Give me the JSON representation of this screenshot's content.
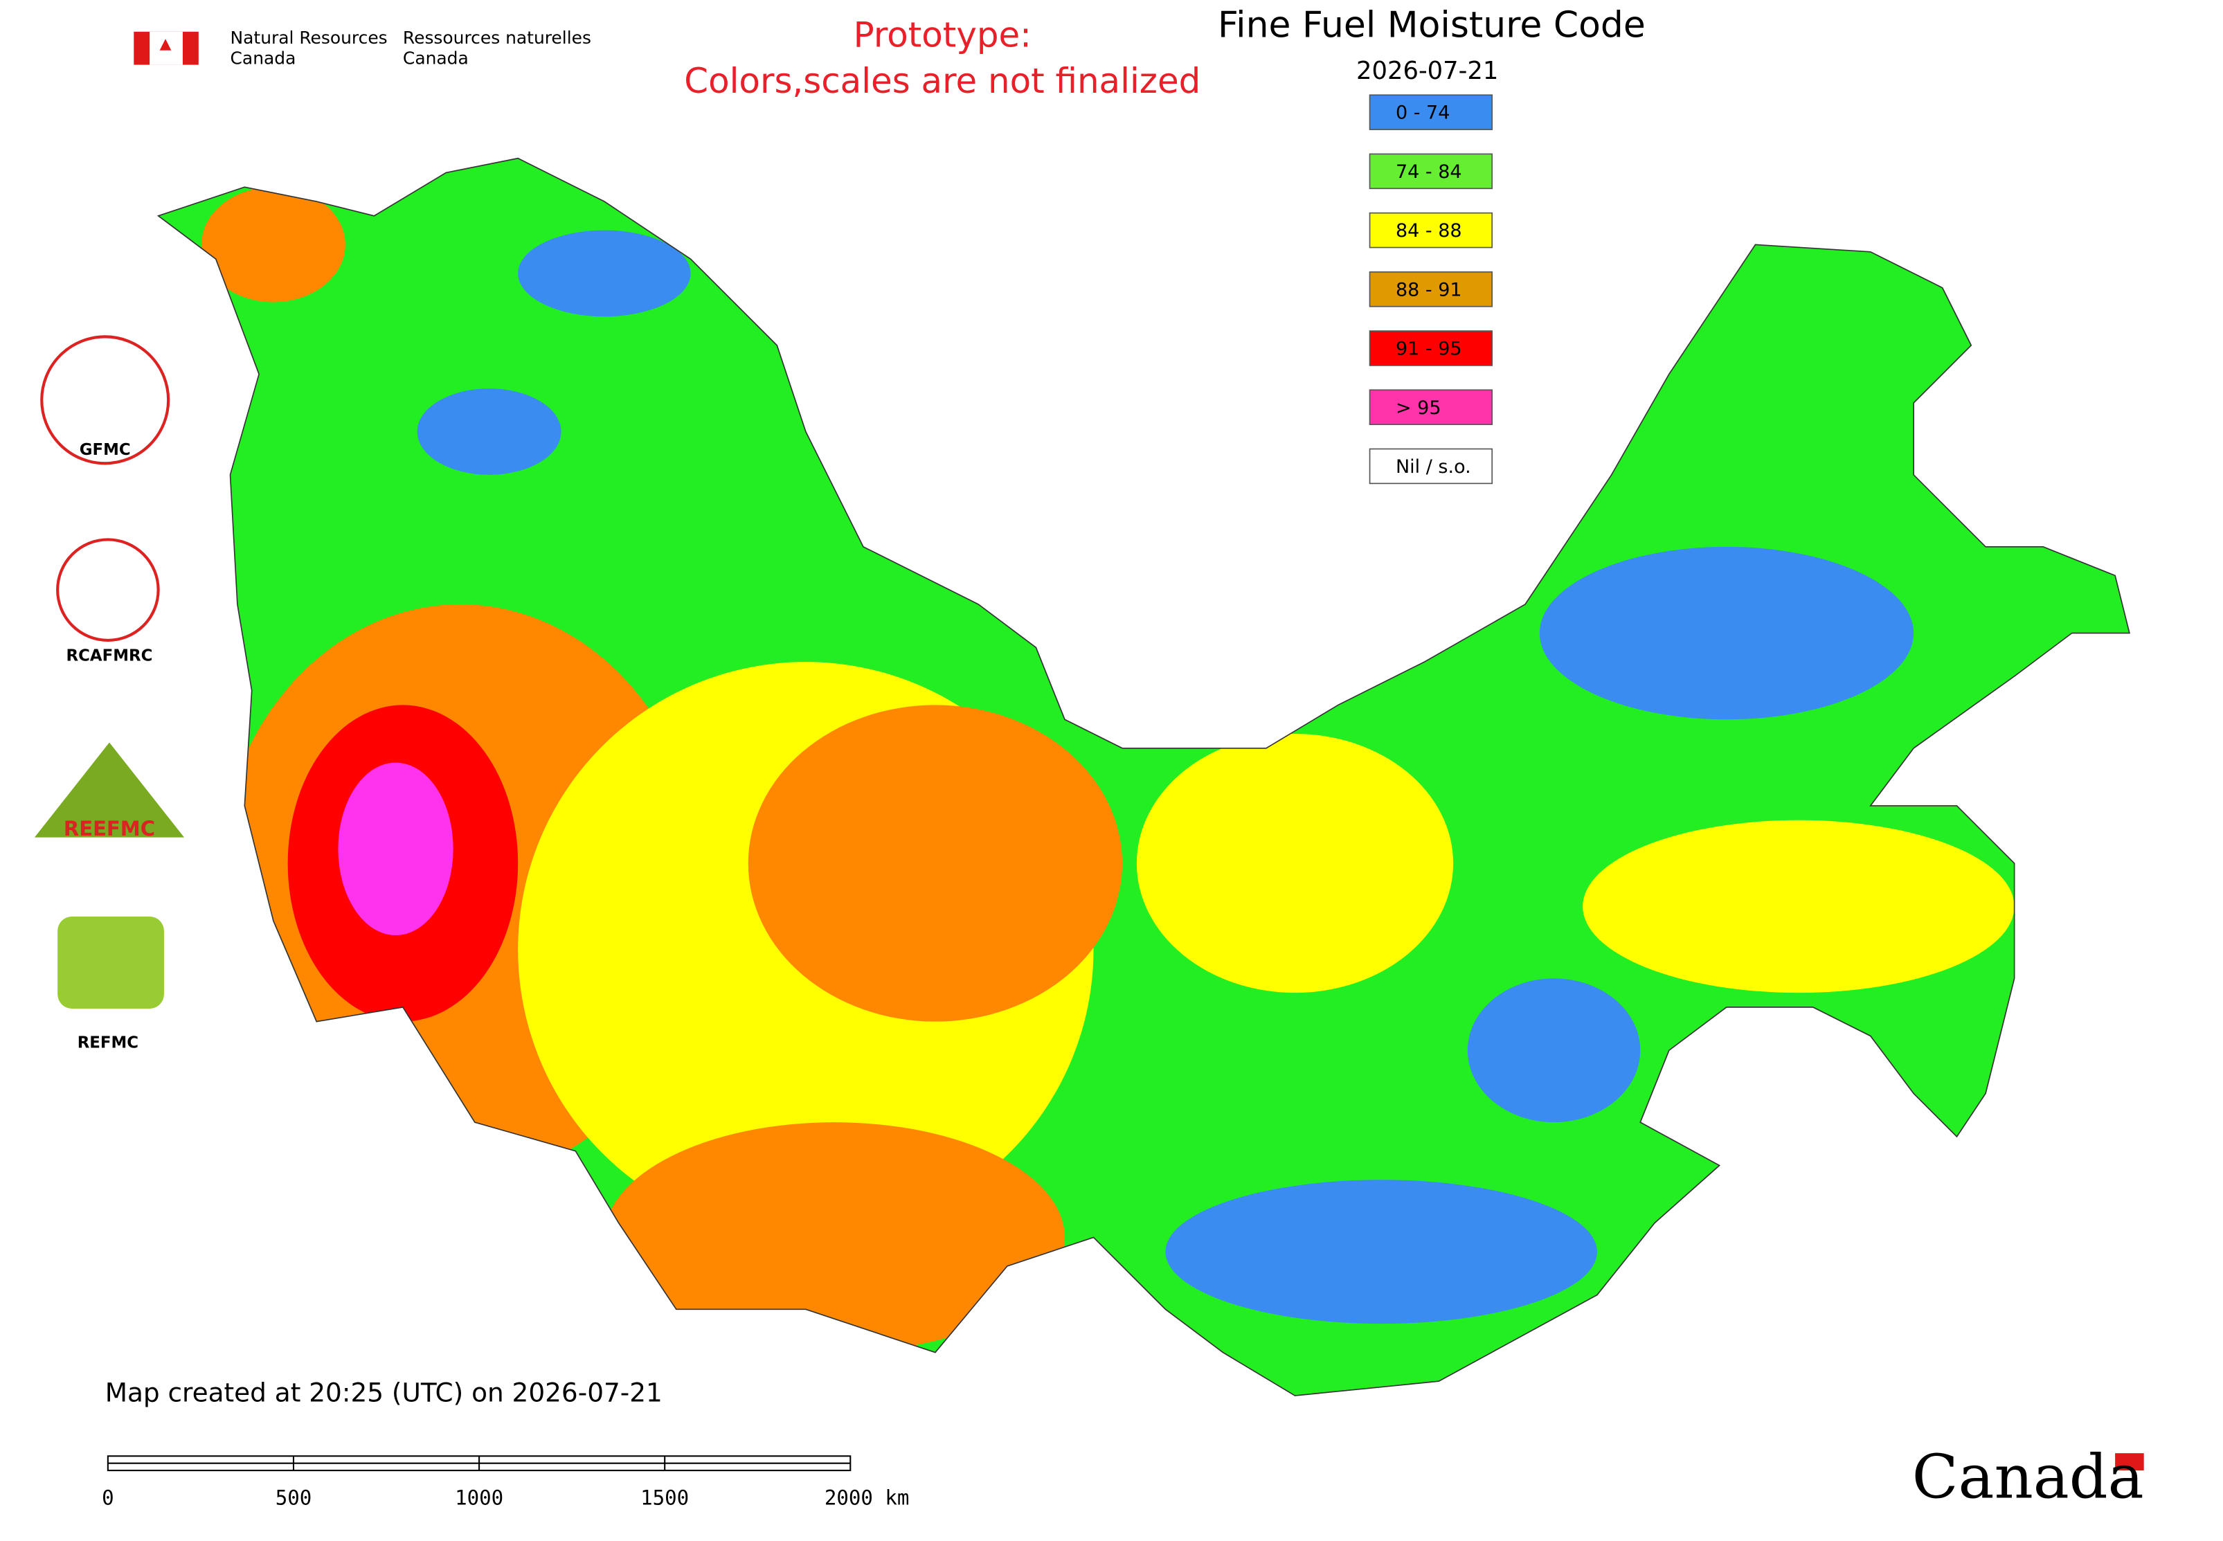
{
  "header": {
    "agency_en": [
      "Natural Resources",
      "Canada"
    ],
    "agency_fr": [
      "Ressources naturelles",
      "Canada"
    ]
  },
  "notice": [
    "Prototype:",
    "Colors,scales are not finalized"
  ],
  "title": "Fine Fuel Moisture Code",
  "date": "2026-07-21",
  "legend": [
    {
      "label": "0 - 74",
      "color": "#3a8cf0"
    },
    {
      "label": "74 - 84",
      "color": "#66ee33"
    },
    {
      "label": "84 - 88",
      "color": "#ffff00"
    },
    {
      "label": "88 - 91",
      "color": "#e09a00"
    },
    {
      "label": "91 - 95",
      "color": "#ff0000"
    },
    {
      "label": "> 95",
      "color": "#ff33aa"
    },
    {
      "label": "Nil / s.o.",
      "color": "#ffffff"
    }
  ],
  "logos": [
    "GFMC",
    "RCAFMRC",
    "REEFMC",
    "REFMC"
  ],
  "footer": "Map created at 20:25 (UTC) on 2026-07-21",
  "scale_bar": [
    "0",
    "500",
    "1000",
    "1500",
    "2000 km"
  ],
  "wordmark": "Canada"
}
